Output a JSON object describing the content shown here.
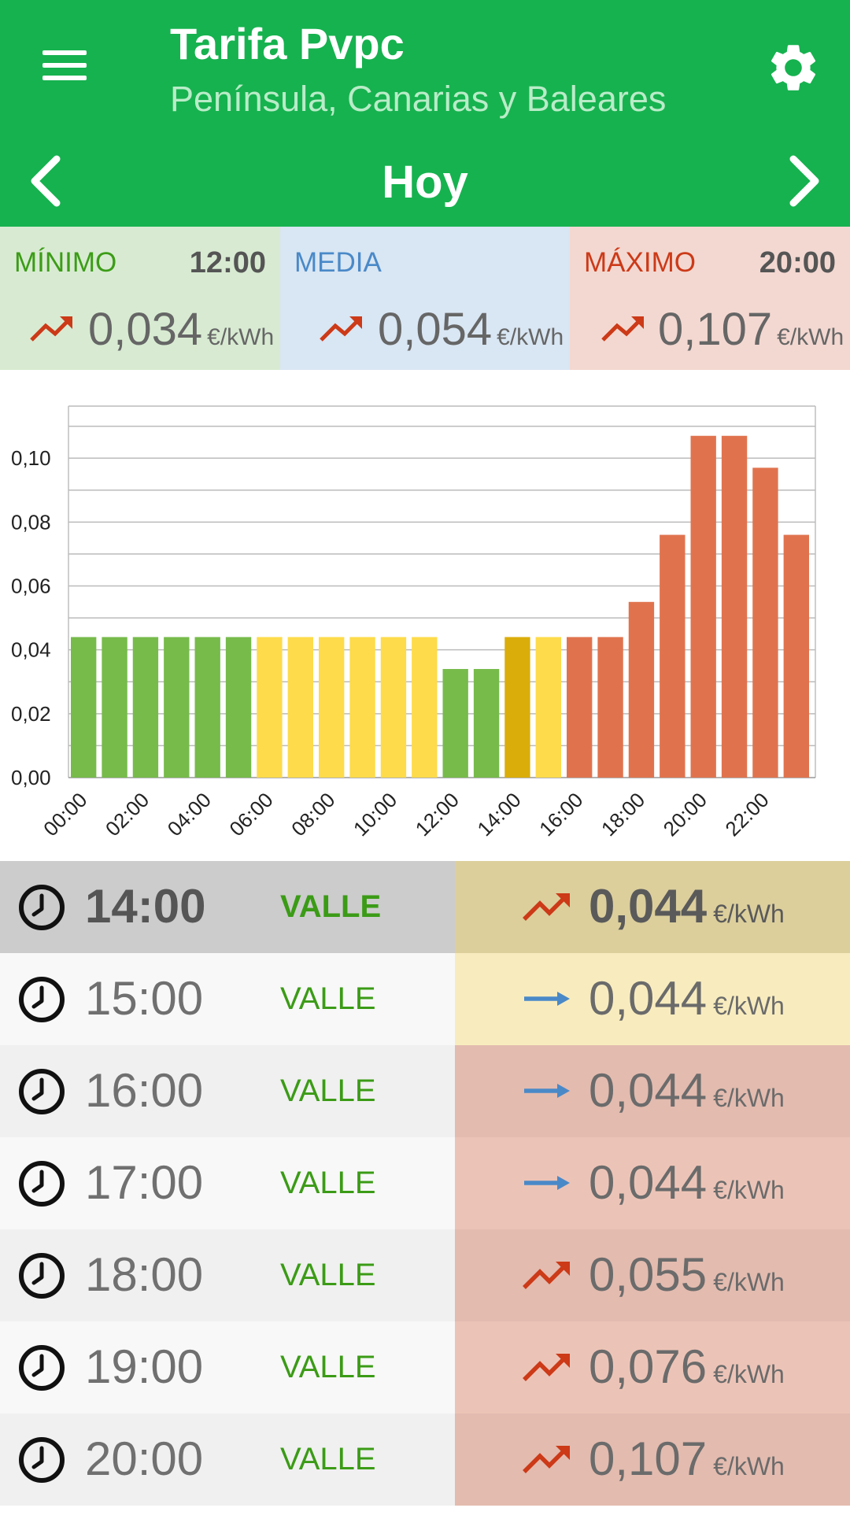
{
  "header": {
    "title": "Tarifa Pvpc",
    "subtitle": "Península, Canarias y Baleares",
    "day": "Hoy"
  },
  "summary": {
    "min": {
      "label": "MÍNIMO",
      "hour": "12:00",
      "value": "0,034",
      "unit": "€/kWh",
      "color": "#3c9c17"
    },
    "avg": {
      "label": "MEDIA",
      "value": "0,054",
      "unit": "€/kWh",
      "color": "#4a89c8"
    },
    "max": {
      "label": "MÁXIMO",
      "hour": "20:00",
      "value": "0,107",
      "unit": "€/kWh",
      "color": "#cc3a18"
    }
  },
  "chart_data": {
    "type": "bar",
    "title": "",
    "xlabel": "",
    "ylabel": "",
    "ylim": [
      0,
      0.12
    ],
    "y_ticks": [
      "0,00",
      "0,02",
      "0,04",
      "0,06",
      "0,08",
      "0,10"
    ],
    "x_ticks": [
      "00:00",
      "02:00",
      "04:00",
      "06:00",
      "08:00",
      "10:00",
      "12:00",
      "14:00",
      "16:00",
      "18:00",
      "20:00",
      "22:00"
    ],
    "categories": [
      "00:00",
      "01:00",
      "02:00",
      "03:00",
      "04:00",
      "05:00",
      "06:00",
      "07:00",
      "08:00",
      "09:00",
      "10:00",
      "11:00",
      "12:00",
      "13:00",
      "14:00",
      "15:00",
      "16:00",
      "17:00",
      "18:00",
      "19:00",
      "20:00",
      "21:00",
      "22:00",
      "23:00"
    ],
    "values": [
      0.044,
      0.044,
      0.044,
      0.044,
      0.044,
      0.044,
      0.044,
      0.044,
      0.044,
      0.044,
      0.044,
      0.044,
      0.034,
      0.034,
      0.044,
      0.044,
      0.044,
      0.044,
      0.055,
      0.076,
      0.107,
      0.107,
      0.097,
      0.076
    ],
    "bar_colors": [
      "#77bb4b",
      "#77bb4b",
      "#77bb4b",
      "#77bb4b",
      "#77bb4b",
      "#77bb4b",
      "#fddb4a",
      "#fddb4a",
      "#fddb4a",
      "#fddb4a",
      "#fddb4a",
      "#fddb4a",
      "#77bb4b",
      "#77bb4b",
      "#dbad0a",
      "#fddb4a",
      "#e0734e",
      "#e0734e",
      "#e0734e",
      "#e0734e",
      "#e0734e",
      "#e0734e",
      "#e0734e",
      "#e0734e"
    ],
    "grid": true
  },
  "rows": [
    {
      "hour": "14:00",
      "period": "VALLE",
      "trend": "trend-up-icon",
      "price": "0,044",
      "unit": "€/kWh",
      "left_bg": "#cccccc",
      "right_bg": "#dccf9c",
      "current": true
    },
    {
      "hour": "15:00",
      "period": "VALLE",
      "trend": "arrow-right-icon",
      "price": "0,044",
      "unit": "€/kWh",
      "left_bg": "#f8f8f8",
      "right_bg": "#f8ecbe",
      "current": false
    },
    {
      "hour": "16:00",
      "period": "VALLE",
      "trend": "arrow-right-icon",
      "price": "0,044",
      "unit": "€/kWh",
      "left_bg": "#f0f0f0",
      "right_bg": "#e3bbaf",
      "current": false
    },
    {
      "hour": "17:00",
      "period": "VALLE",
      "trend": "arrow-right-icon",
      "price": "0,044",
      "unit": "€/kWh",
      "left_bg": "#f8f8f8",
      "right_bg": "#ecc4b7",
      "current": false
    },
    {
      "hour": "18:00",
      "period": "VALLE",
      "trend": "trend-up-icon",
      "price": "0,055",
      "unit": "€/kWh",
      "left_bg": "#f0f0f0",
      "right_bg": "#e3bbaf",
      "current": false
    },
    {
      "hour": "19:00",
      "period": "VALLE",
      "trend": "trend-up-icon",
      "price": "0,076",
      "unit": "€/kWh",
      "left_bg": "#f8f8f8",
      "right_bg": "#ecc4b7",
      "current": false
    },
    {
      "hour": "20:00",
      "period": "VALLE",
      "trend": "trend-up-icon",
      "price": "0,107",
      "unit": "€/kWh",
      "left_bg": "#f0f0f0",
      "right_bg": "#e3bbaf",
      "current": false
    }
  ],
  "colors": {
    "primary": "#16b24f",
    "trend_up": "#cc3a18",
    "trend_flat": "#4a89c8",
    "valle": "#3b9b16"
  }
}
